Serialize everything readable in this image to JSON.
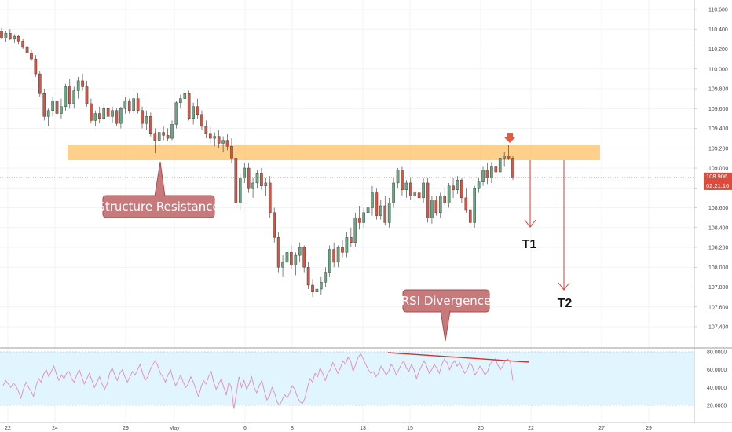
{
  "chart_data": [
    {
      "type": "candlestick",
      "pane": "price",
      "ylim": [
        107.3,
        110.72
      ],
      "y_ticks": [
        "110.600",
        "110.400",
        "110.200",
        "110.000",
        "109.800",
        "109.600",
        "109.400",
        "109.200",
        "109.000",
        "108.800",
        "108.600",
        "108.400",
        "108.200",
        "108.000",
        "107.800",
        "107.600",
        "107.400"
      ],
      "x_ticks": [
        "22",
        "24",
        "29",
        "May",
        "6",
        "8",
        "13",
        "15",
        "20",
        "22",
        "27",
        "29"
      ],
      "last_price": "108.906",
      "countdown": "02:21:16",
      "up_color": "#6ba583",
      "down_color": "#d75442",
      "candles": [
        [
          110.38,
          110.41,
          110.3,
          110.31
        ],
        [
          110.31,
          110.38,
          110.27,
          110.36
        ],
        [
          110.36,
          110.4,
          110.29,
          110.3
        ],
        [
          110.3,
          110.35,
          110.26,
          110.33
        ],
        [
          110.33,
          110.34,
          110.25,
          110.28
        ],
        [
          110.28,
          110.3,
          110.2,
          110.22
        ],
        [
          110.22,
          110.25,
          110.14,
          110.16
        ],
        [
          110.16,
          110.19,
          110.08,
          110.1
        ],
        [
          110.1,
          110.14,
          109.92,
          109.95
        ],
        [
          109.95,
          109.98,
          109.72,
          109.75
        ],
        [
          109.75,
          109.8,
          109.48,
          109.52
        ],
        [
          109.52,
          109.6,
          109.42,
          109.58
        ],
        [
          109.58,
          109.72,
          109.52,
          109.68
        ],
        [
          109.68,
          109.75,
          109.5,
          109.55
        ],
        [
          109.55,
          109.7,
          109.5,
          109.62
        ],
        [
          109.62,
          109.85,
          109.58,
          109.82
        ],
        [
          109.82,
          109.9,
          109.6,
          109.65
        ],
        [
          109.65,
          109.82,
          109.6,
          109.78
        ],
        [
          109.78,
          109.92,
          109.7,
          109.88
        ],
        [
          109.88,
          109.95,
          109.78,
          109.82
        ],
        [
          109.82,
          109.88,
          109.62,
          109.65
        ],
        [
          109.65,
          109.7,
          109.45,
          109.48
        ],
        [
          109.48,
          109.58,
          109.42,
          109.55
        ],
        [
          109.55,
          109.62,
          109.45,
          109.5
        ],
        [
          109.5,
          109.65,
          109.48,
          109.6
        ],
        [
          109.6,
          109.66,
          109.48,
          109.52
        ],
        [
          109.52,
          109.62,
          109.46,
          109.58
        ],
        [
          109.58,
          109.6,
          109.42,
          109.45
        ],
        [
          109.45,
          109.62,
          109.4,
          109.6
        ],
        [
          109.6,
          109.72,
          109.55,
          109.68
        ],
        [
          109.68,
          109.7,
          109.55,
          109.58
        ],
        [
          109.58,
          109.72,
          109.55,
          109.7
        ],
        [
          109.7,
          109.76,
          109.55,
          109.58
        ],
        [
          109.58,
          109.62,
          109.4,
          109.45
        ],
        [
          109.45,
          109.58,
          109.38,
          109.52
        ],
        [
          109.52,
          109.56,
          109.32,
          109.35
        ],
        [
          109.35,
          109.4,
          109.15,
          109.28
        ],
        [
          109.28,
          109.4,
          109.22,
          109.36
        ],
        [
          109.36,
          109.42,
          109.28,
          109.33
        ],
        [
          109.33,
          109.4,
          109.27,
          109.3
        ],
        [
          109.3,
          109.48,
          109.28,
          109.44
        ],
        [
          109.44,
          109.68,
          109.4,
          109.66
        ],
        [
          109.66,
          109.74,
          109.6,
          109.7
        ],
        [
          109.7,
          109.8,
          109.62,
          109.75
        ],
        [
          109.75,
          109.78,
          109.48,
          109.5
        ],
        [
          109.5,
          109.66,
          109.44,
          109.62
        ],
        [
          109.62,
          109.7,
          109.5,
          109.54
        ],
        [
          109.54,
          109.58,
          109.38,
          109.42
        ],
        [
          109.42,
          109.48,
          109.3,
          109.35
        ],
        [
          109.35,
          109.42,
          109.25,
          109.3
        ],
        [
          109.3,
          109.36,
          109.22,
          109.32
        ],
        [
          109.32,
          109.38,
          109.2,
          109.25
        ],
        [
          109.25,
          109.32,
          109.16,
          109.28
        ],
        [
          109.28,
          109.34,
          109.18,
          109.22
        ],
        [
          109.22,
          109.3,
          109.05,
          109.1
        ],
        [
          109.1,
          109.12,
          108.6,
          108.65
        ],
        [
          108.65,
          108.95,
          108.58,
          108.9
        ],
        [
          108.9,
          109.05,
          108.85,
          109.0
        ],
        [
          109.0,
          109.05,
          108.75,
          108.8
        ],
        [
          108.8,
          108.9,
          108.7,
          108.85
        ],
        [
          108.85,
          108.98,
          108.8,
          108.95
        ],
        [
          108.95,
          109.0,
          108.78,
          108.82
        ],
        [
          108.82,
          108.9,
          108.72,
          108.85
        ],
        [
          108.85,
          108.92,
          108.5,
          108.55
        ],
        [
          108.55,
          108.6,
          108.25,
          108.3
        ],
        [
          108.3,
          108.35,
          107.95,
          108.0
        ],
        [
          108.0,
          108.12,
          107.9,
          108.05
        ],
        [
          108.05,
          108.2,
          107.95,
          108.15
        ],
        [
          108.15,
          108.22,
          107.98,
          108.02
        ],
        [
          108.02,
          108.15,
          107.92,
          108.12
        ],
        [
          108.12,
          108.25,
          108.05,
          108.2
        ],
        [
          108.2,
          108.22,
          107.95,
          108.0
        ],
        [
          108.0,
          108.05,
          107.78,
          107.82
        ],
        [
          107.82,
          107.88,
          107.7,
          107.75
        ],
        [
          107.75,
          107.82,
          107.65,
          107.78
        ],
        [
          107.78,
          107.9,
          107.72,
          107.85
        ],
        [
          107.85,
          108.0,
          107.8,
          107.95
        ],
        [
          107.95,
          108.22,
          107.9,
          108.18
        ],
        [
          108.18,
          108.25,
          108.0,
          108.05
        ],
        [
          108.05,
          108.22,
          108.0,
          108.2
        ],
        [
          108.2,
          108.28,
          108.1,
          108.15
        ],
        [
          108.15,
          108.35,
          108.1,
          108.3
        ],
        [
          108.3,
          108.4,
          108.2,
          108.25
        ],
        [
          108.25,
          108.55,
          108.2,
          108.5
        ],
        [
          108.5,
          108.62,
          108.38,
          108.45
        ],
        [
          108.45,
          108.6,
          108.4,
          108.55
        ],
        [
          108.55,
          108.92,
          108.5,
          108.6
        ],
        [
          108.6,
          108.82,
          108.52,
          108.75
        ],
        [
          108.75,
          108.8,
          108.48,
          108.52
        ],
        [
          108.52,
          108.68,
          108.48,
          108.62
        ],
        [
          108.62,
          108.72,
          108.42,
          108.45
        ],
        [
          108.45,
          108.7,
          108.4,
          108.65
        ],
        [
          108.65,
          108.9,
          108.6,
          108.85
        ],
        [
          108.85,
          109.0,
          108.8,
          108.98
        ],
        [
          108.98,
          109.02,
          108.72,
          108.78
        ],
        [
          108.78,
          108.88,
          108.7,
          108.85
        ],
        [
          108.85,
          108.9,
          108.68,
          108.72
        ],
        [
          108.72,
          108.78,
          108.65,
          108.75
        ],
        [
          108.75,
          108.82,
          108.68,
          108.7
        ],
        [
          108.7,
          108.9,
          108.65,
          108.85
        ],
        [
          108.85,
          108.9,
          108.45,
          108.5
        ],
        [
          108.5,
          108.72,
          108.44,
          108.68
        ],
        [
          108.68,
          108.72,
          108.52,
          108.55
        ],
        [
          108.55,
          108.75,
          108.5,
          108.72
        ],
        [
          108.72,
          108.8,
          108.62,
          108.65
        ],
        [
          108.65,
          108.85,
          108.6,
          108.82
        ],
        [
          108.82,
          108.9,
          108.7,
          108.78
        ],
        [
          108.78,
          108.92,
          108.74,
          108.88
        ],
        [
          108.88,
          108.9,
          108.65,
          108.7
        ],
        [
          108.7,
          108.8,
          108.55,
          108.58
        ],
        [
          108.58,
          108.62,
          108.38,
          108.45
        ],
        [
          108.45,
          108.82,
          108.4,
          108.8
        ],
        [
          108.8,
          108.9,
          108.75,
          108.86
        ],
        [
          108.86,
          109.02,
          108.82,
          108.98
        ],
        [
          108.98,
          109.05,
          108.84,
          108.9
        ],
        [
          108.9,
          109.06,
          108.85,
          109.02
        ],
        [
          109.02,
          109.12,
          108.92,
          108.96
        ],
        [
          108.96,
          109.14,
          108.92,
          109.1
        ],
        [
          109.1,
          109.16,
          109.02,
          109.12
        ],
        [
          109.12,
          109.23,
          109.08,
          109.1
        ],
        [
          109.1,
          109.12,
          108.88,
          108.91
        ]
      ]
    },
    {
      "type": "line",
      "pane": "rsi",
      "ylim": [
        15,
        82
      ],
      "y_ticks": [
        "80.0000",
        "60.0000",
        "40.0000",
        "20.0000"
      ],
      "band": [
        20,
        80
      ],
      "values": [
        42,
        48,
        44,
        40,
        45,
        42,
        36,
        28,
        38,
        46,
        40,
        36,
        30,
        42,
        50,
        46,
        55,
        60,
        52,
        58,
        64,
        55,
        48,
        54,
        50,
        56,
        58,
        50,
        46,
        54,
        60,
        52,
        44,
        50,
        56,
        48,
        40,
        46,
        52,
        44,
        38,
        44,
        56,
        62,
        54,
        48,
        56,
        60,
        52,
        46,
        52,
        58,
        54,
        60,
        66,
        56,
        48,
        52,
        60,
        66,
        70,
        64,
        56,
        52,
        46,
        54,
        60,
        50,
        42,
        48,
        54,
        46,
        40,
        44,
        52,
        46,
        38,
        30,
        40,
        48,
        44,
        52,
        58,
        46,
        38,
        44,
        50,
        40,
        32,
        46,
        40,
        16,
        34,
        52,
        40,
        48,
        38,
        44,
        52,
        40,
        34,
        42,
        48,
        36,
        26,
        30,
        40,
        34,
        24,
        20,
        26,
        32,
        28,
        34,
        42,
        38,
        30,
        24,
        22,
        28,
        40,
        50,
        46,
        56,
        52,
        62,
        56,
        48,
        56,
        60,
        68,
        62,
        56,
        62,
        70,
        66,
        74,
        70,
        58,
        66,
        74,
        78,
        72,
        66,
        60,
        56,
        58,
        52,
        56,
        64,
        60,
        54,
        58,
        66,
        62,
        54,
        60,
        66,
        70,
        62,
        58,
        66,
        60,
        50,
        58,
        64,
        70,
        64,
        56,
        60,
        66,
        62,
        56,
        66,
        72,
        68,
        60,
        66,
        70,
        64,
        68,
        62,
        56,
        60,
        68,
        64,
        54,
        58,
        64,
        60,
        54,
        58,
        66,
        70,
        72,
        66,
        60,
        64,
        70,
        72,
        68,
        48
      ]
    }
  ],
  "annotations": {
    "resistance_label": "Structure Resistance",
    "rsi_label": "RSI Divergence",
    "target1": "T1",
    "target2": "T2"
  }
}
